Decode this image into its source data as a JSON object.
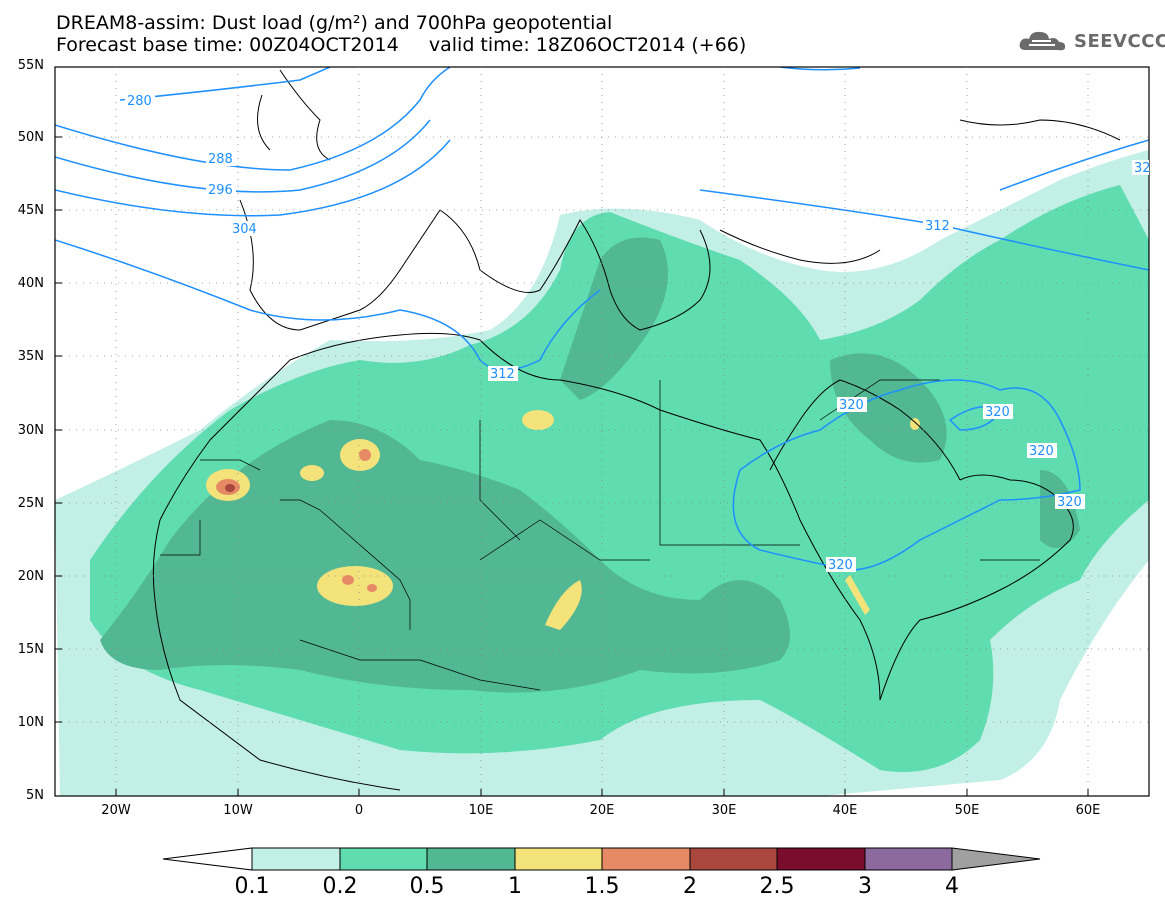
{
  "header": {
    "title_line1": "DREAM8-assim: Dust load (g/m²) and 700hPa geopotential",
    "title_line2": "Forecast base time: 00Z04OCT2014     valid time: 18Z06OCT2014 (+66)",
    "logo_text": "SEEVCCC"
  },
  "map": {
    "lat_labels": [
      "55N",
      "50N",
      "45N",
      "40N",
      "35N",
      "30N",
      "25N",
      "20N",
      "15N",
      "10N",
      "5N"
    ],
    "lon_labels": [
      "20W",
      "10W",
      "0",
      "10E",
      "20E",
      "30E",
      "40E",
      "50E",
      "60E"
    ],
    "contour_labels": [
      "280",
      "288",
      "296",
      "304",
      "312",
      "312",
      "320",
      "320",
      "320",
      "320",
      "320",
      "32"
    ],
    "land_color": "#ffffff",
    "dust_colors": [
      "#c2efe6",
      "#5fdcb0",
      "#52b894",
      "#f3e37a",
      "#e68a66",
      "#a9473f",
      "#7a0d2d",
      "#8d6a9e",
      "#a0a0a0"
    ]
  },
  "colorbar": {
    "labels": [
      "0.1",
      "0.2",
      "0.5",
      "1",
      "1.5",
      "2",
      "2.5",
      "3",
      "4"
    ],
    "colors": [
      "#c2efe6",
      "#5fdcb0",
      "#52b894",
      "#f3e37a",
      "#e68a66",
      "#a9473f",
      "#7a0d2d",
      "#8d6a9e"
    ]
  }
}
